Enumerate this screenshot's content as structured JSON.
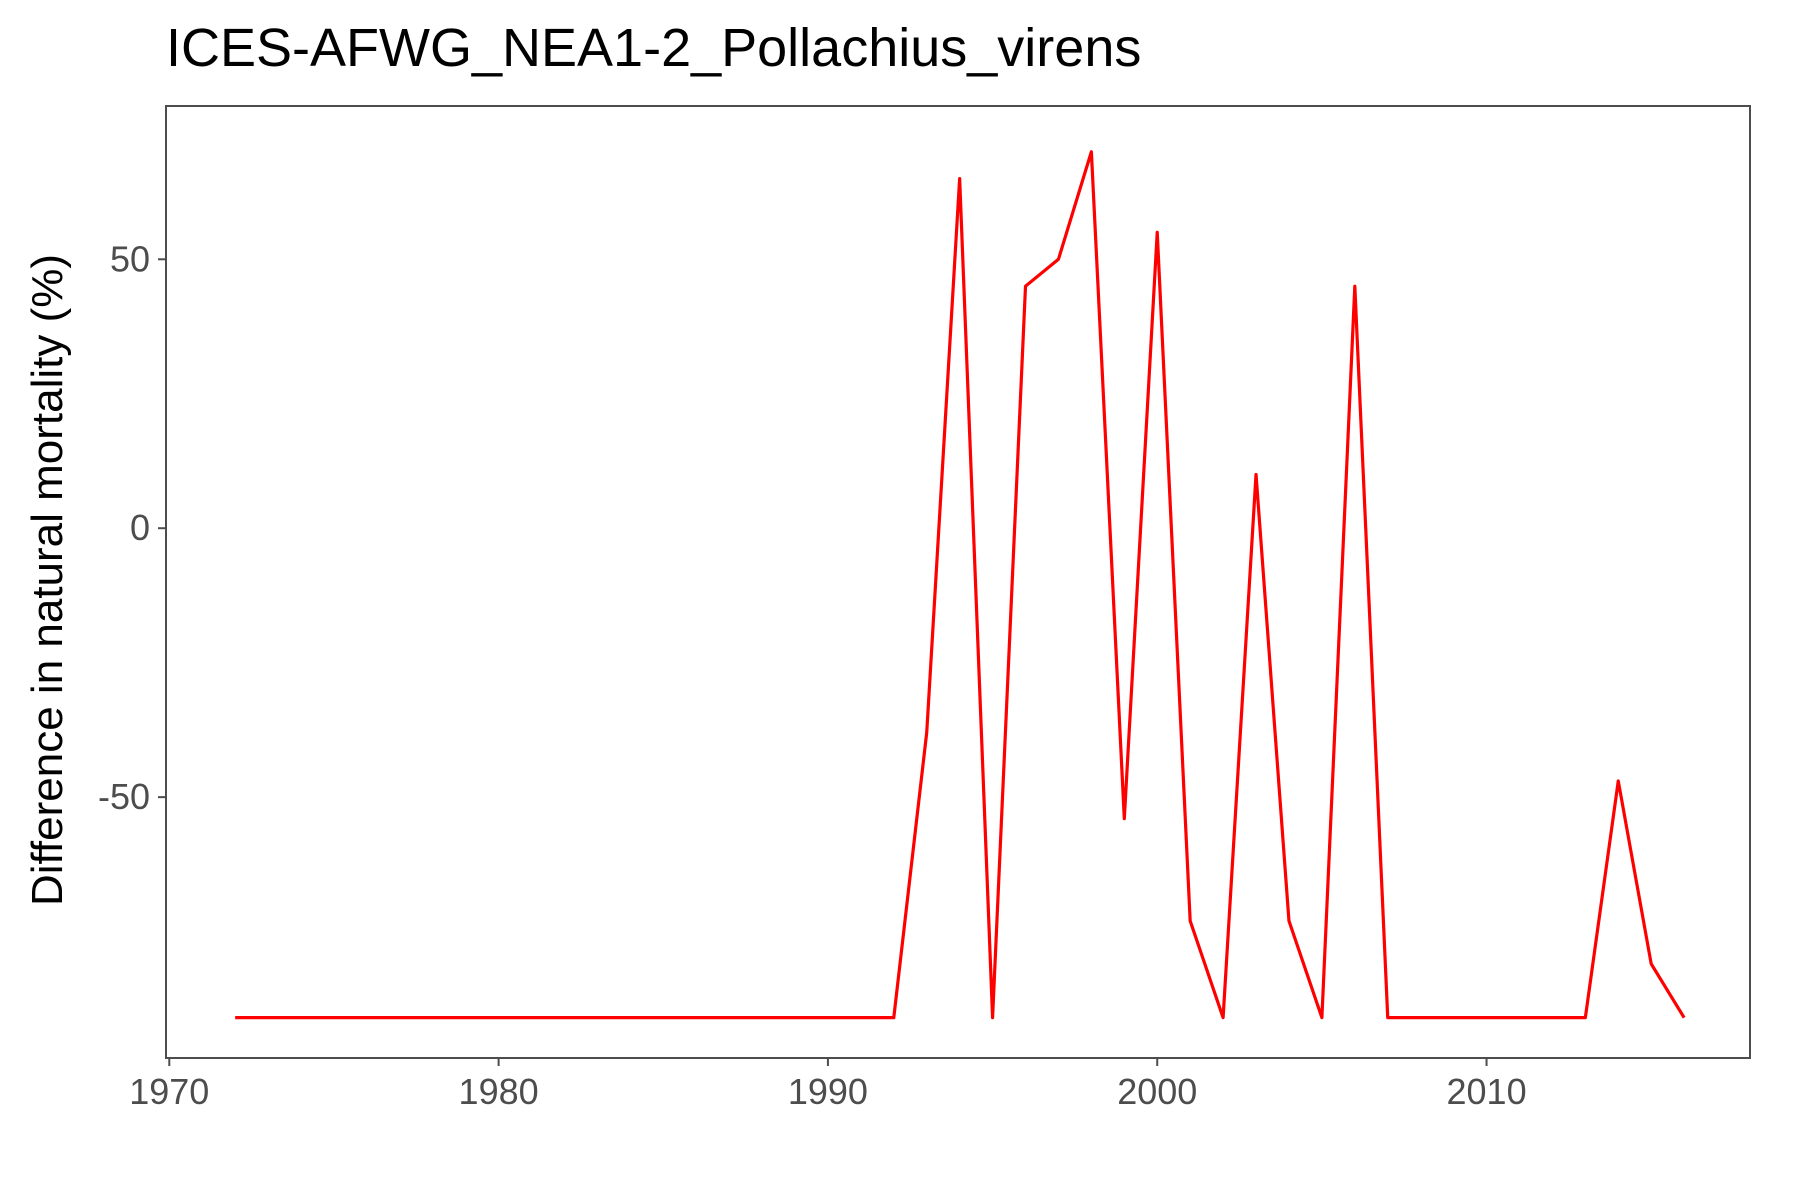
{
  "chart_data": {
    "type": "line",
    "title": "ICES-AFWG_NEA1-2_Pollachius_virens",
    "xlabel": "",
    "ylabel": "Difference in natural mortality (%)",
    "xlim": [
      1969.9,
      2018
    ],
    "ylim": [
      -98.5,
      78.5
    ],
    "x_ticks": [
      1970,
      1980,
      1990,
      2000,
      2010
    ],
    "x_tick_labels": [
      "1970",
      "1980",
      "1990",
      "2000",
      "2010"
    ],
    "y_ticks": [
      -50,
      0,
      50
    ],
    "y_tick_labels": [
      "-50",
      "0",
      "50"
    ],
    "grid": false,
    "legend": "none",
    "series": [
      {
        "color": "#ff0000",
        "x": [
          1972,
          1973,
          1974,
          1975,
          1976,
          1977,
          1978,
          1979,
          1980,
          1981,
          1982,
          1983,
          1984,
          1985,
          1986,
          1987,
          1988,
          1989,
          1990,
          1991,
          1992,
          1993,
          1994,
          1995,
          1996,
          1997,
          1998,
          1999,
          2000,
          2001,
          2002,
          2003,
          2004,
          2005,
          2006,
          2007,
          2008,
          2009,
          2010,
          2011,
          2012,
          2013,
          2014,
          2015,
          2016
        ],
        "values": [
          -91,
          -91,
          -91,
          -91,
          -91,
          -91,
          -91,
          -91,
          -91,
          -91,
          -91,
          -91,
          -91,
          -91,
          -91,
          -91,
          -91,
          -91,
          -91,
          -91,
          -91,
          -38,
          65,
          -91,
          45,
          50,
          70,
          -54,
          55,
          -73,
          -91,
          10,
          -73,
          -91,
          45,
          -91,
          -91,
          -91,
          -91,
          -91,
          -91,
          -91,
          -47,
          -81,
          -91
        ]
      }
    ]
  }
}
